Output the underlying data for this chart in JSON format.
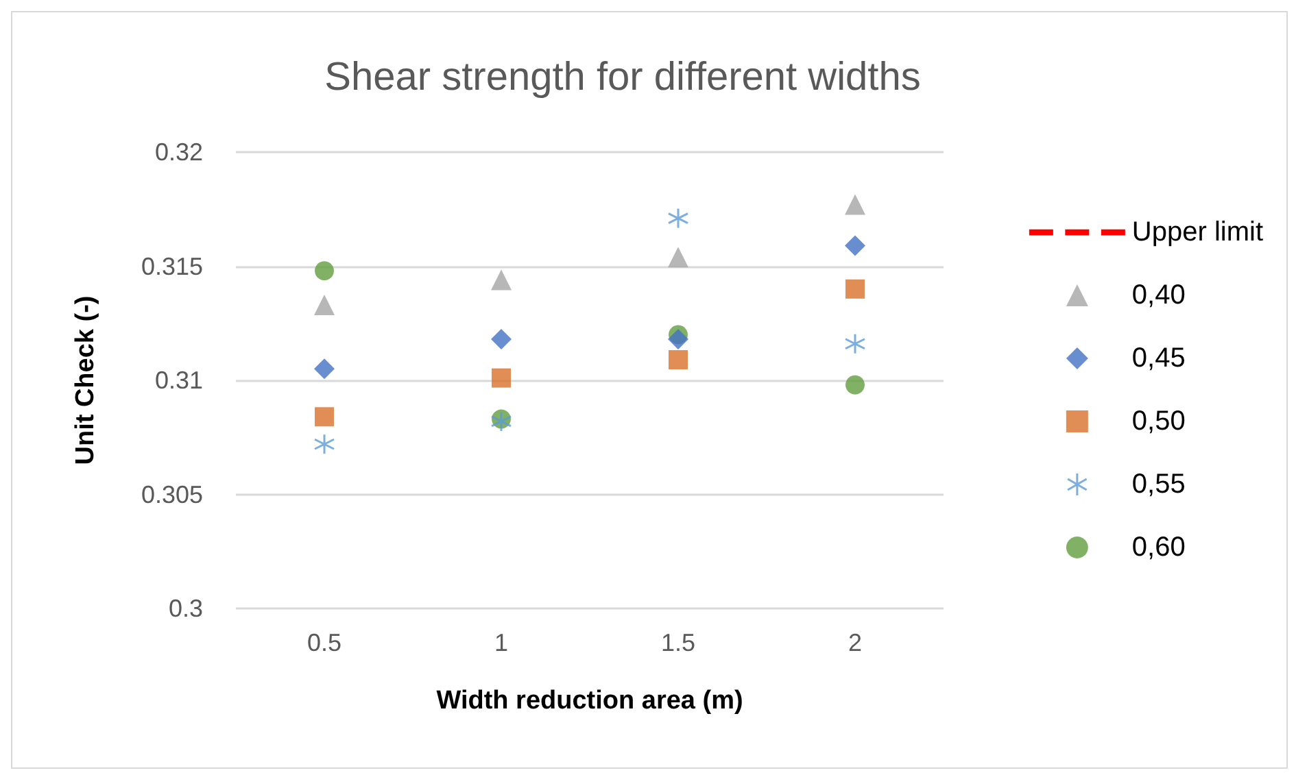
{
  "chart_data": {
    "type": "scatter",
    "title": "Shear strength for different widths",
    "xlabel": "Width reduction area (m)",
    "ylabel": "Unit Check (-)",
    "categories": [
      "0.5",
      "1",
      "1.5",
      "2"
    ],
    "ylim": [
      0.3,
      0.32
    ],
    "yticks": [
      {
        "value": 0.3,
        "label": "0.3"
      },
      {
        "value": 0.305,
        "label": "0.305"
      },
      {
        "value": 0.31,
        "label": "0.31"
      },
      {
        "value": 0.315,
        "label": "0.315"
      },
      {
        "value": 0.32,
        "label": "0.32"
      }
    ],
    "grid": "y",
    "legend": "right",
    "series": [
      {
        "name": "Upper limit",
        "type": "line",
        "line_style": "dashed",
        "marker": "none",
        "color": "#ff0000",
        "values": [
          null,
          null,
          null,
          null
        ]
      },
      {
        "name": "0,40",
        "marker": "triangle",
        "color": "#a5a5a5",
        "values": [
          0.3133,
          0.3144,
          0.3154,
          0.3177
        ]
      },
      {
        "name": "0,45",
        "marker": "diamond",
        "color": "#4472c4",
        "values": [
          0.3105,
          0.3118,
          0.3118,
          0.3159
        ]
      },
      {
        "name": "0,50",
        "marker": "square",
        "color": "#d9702c",
        "values": [
          0.3084,
          0.3101,
          0.3109,
          0.314
        ]
      },
      {
        "name": "0,55",
        "marker": "cross",
        "color": "#5b9bd5",
        "values": [
          0.3072,
          0.3082,
          0.3171,
          0.3116
        ]
      },
      {
        "name": "0,60",
        "marker": "circle",
        "color": "#629d3e",
        "values": [
          0.3148,
          0.3083,
          0.312,
          0.3098
        ]
      }
    ]
  }
}
